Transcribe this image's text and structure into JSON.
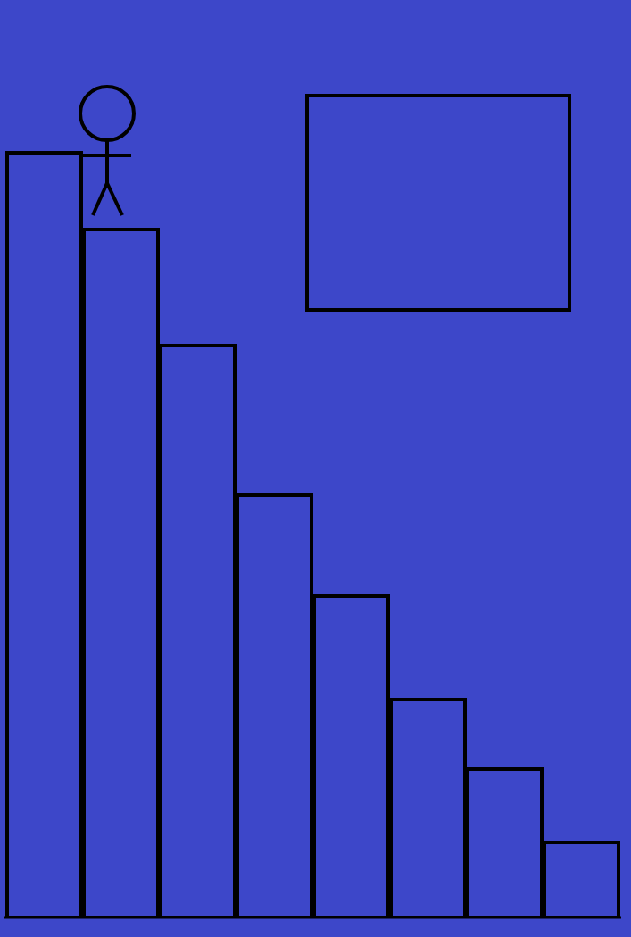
{
  "chart_data": {
    "type": "bar",
    "categories": [
      null,
      null,
      null,
      null,
      null,
      null,
      null,
      null
    ],
    "values": [
      856,
      770,
      640,
      473,
      360,
      244,
      166,
      84
    ],
    "color": "#3d47c9",
    "ylim": [
      0,
      1027
    ],
    "yticks": [],
    "grid": false,
    "tick_labels": false
  }
}
